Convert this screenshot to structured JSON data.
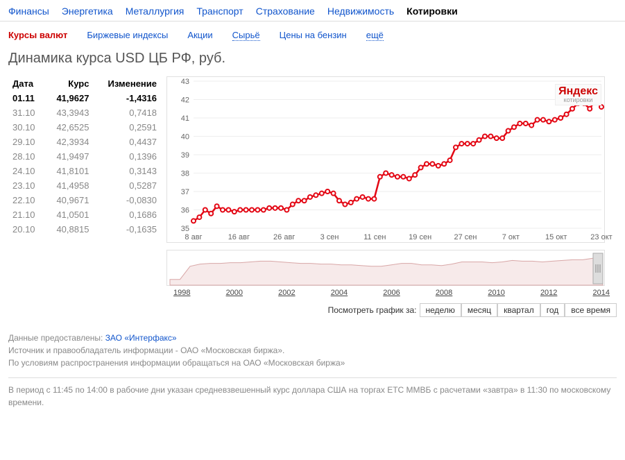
{
  "topnav": [
    "Финансы",
    "Энергетика",
    "Металлургия",
    "Транспорт",
    "Страхование",
    "Недвижимость",
    "Котировки"
  ],
  "topnav_active": 6,
  "subnav": [
    {
      "label": "Курсы валют",
      "active": true
    },
    {
      "label": "Биржевые индексы"
    },
    {
      "label": "Акции"
    },
    {
      "label": "Сырьё",
      "dotted": true
    },
    {
      "label": "Цены на бензин"
    },
    {
      "label": "ещё",
      "dotted": true
    }
  ],
  "title": "Динамика курса USD ЦБ РФ, руб.",
  "table_headers": [
    "Дата",
    "Курс",
    "Изменение"
  ],
  "rows": [
    {
      "d": "01.11",
      "r": "41,9627",
      "c": "-1,4316",
      "hl": true
    },
    {
      "d": "31.10",
      "r": "43,3943",
      "c": "0,7418"
    },
    {
      "d": "30.10",
      "r": "42,6525",
      "c": "0,2591"
    },
    {
      "d": "29.10",
      "r": "42,3934",
      "c": "0,4437"
    },
    {
      "d": "28.10",
      "r": "41,9497",
      "c": "0,1396"
    },
    {
      "d": "24.10",
      "r": "41,8101",
      "c": "0,3143"
    },
    {
      "d": "23.10",
      "r": "41,4958",
      "c": "0,5287"
    },
    {
      "d": "22.10",
      "r": "40,9671",
      "c": "-0,0830"
    },
    {
      "d": "21.10",
      "r": "41,0501",
      "c": "0,1686"
    },
    {
      "d": "20.10",
      "r": "40,8815",
      "c": "-0,1635"
    }
  ],
  "chart": {
    "ymin": 35,
    "ymax": 43,
    "ystep": 1,
    "xlabels": [
      "8 авг",
      "16 авг",
      "26 авг",
      "3 сен",
      "11 сен",
      "19 сен",
      "27 сен",
      "7 окт",
      "15 окт",
      "23 окт"
    ],
    "values": [
      35.4,
      35.6,
      36.0,
      35.8,
      36.2,
      36.0,
      36.0,
      35.9,
      36.0,
      36.0,
      36.0,
      36.0,
      36.0,
      36.1,
      36.1,
      36.1,
      36.0,
      36.3,
      36.5,
      36.5,
      36.7,
      36.8,
      36.9,
      37.0,
      36.9,
      36.5,
      36.3,
      36.4,
      36.6,
      36.7,
      36.6,
      36.6,
      37.8,
      38.0,
      37.9,
      37.8,
      37.8,
      37.7,
      37.9,
      38.3,
      38.5,
      38.5,
      38.4,
      38.5,
      38.7,
      39.4,
      39.6,
      39.6,
      39.6,
      39.8,
      40.0,
      40.0,
      39.9,
      39.9,
      40.3,
      40.5,
      40.7,
      40.7,
      40.6,
      40.9,
      40.9,
      40.8,
      40.9,
      41.0,
      41.2,
      41.5,
      41.8,
      41.8,
      41.5,
      42.0,
      41.6
    ],
    "line_color": "#e30613",
    "marker_fill": "#ffffff",
    "marker_stroke": "#e30613",
    "watermark_logo": "Яндекс",
    "watermark_sub": "котировки"
  },
  "range_chart": {
    "years": [
      "1998",
      "2000",
      "2002",
      "2004",
      "2006",
      "2008",
      "2010",
      "2012",
      "2014"
    ],
    "values": [
      6,
      6,
      24,
      27,
      28,
      28,
      29,
      29,
      30,
      31,
      31,
      30,
      29,
      28,
      28,
      27,
      27,
      26,
      26,
      25,
      24,
      24,
      26,
      28,
      28,
      26,
      26,
      25,
      27,
      30,
      30,
      30,
      29,
      30,
      32,
      31,
      31,
      30,
      31,
      32,
      33,
      33,
      35,
      40
    ],
    "fill": "#f7eaea",
    "stroke": "#d8a6a6"
  },
  "range_label": "Посмотреть график за:",
  "range_buttons": [
    "неделю",
    "месяц",
    "квартал",
    "год",
    "все время"
  ],
  "footer1_prefix": "Данные предоставлены: ",
  "footer1_link": "ЗАО «Интерфакс»",
  "footer2": "Источник и правообладатель информации - ОАО «Московская биржа».",
  "footer3": "По условиям распространения информации обращаться на ОАО «Московская биржа»",
  "disclaimer": "В период с 11:45 по 14:00 в рабочие дни указан средневзвешенный курс доллара США на торгах ЕТС ММВБ с расчетами «завтра» в 11:30 по московскому времени."
}
